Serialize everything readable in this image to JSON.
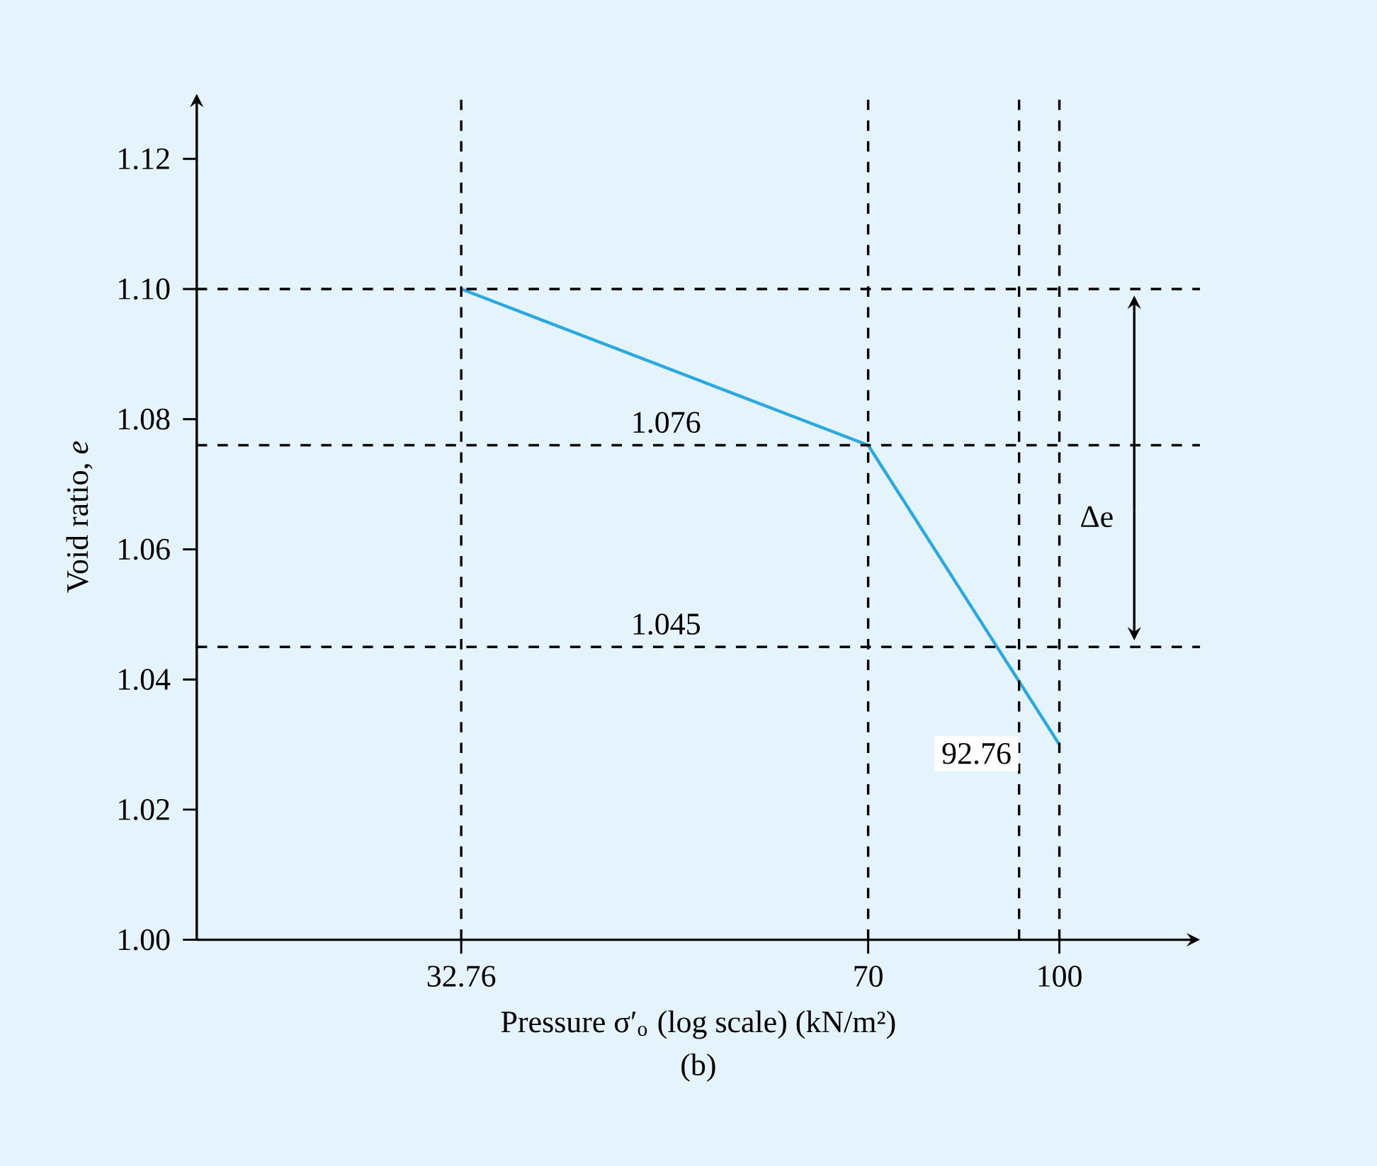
{
  "chart_data": {
    "type": "line",
    "xlabel": "Pressure σ′$_{o}$ (log scale) (kN/m²)",
    "ylabel": "Void ratio, *e*",
    "x": [
      32.76,
      70,
      100
    ],
    "series": [
      {
        "color": "#2aa8e0",
        "values": [
          1.1,
          1.076,
          1.03
        ]
      }
    ],
    "log": "x",
    "xlim": [
      20,
      130
    ],
    "ylim": [
      1.0,
      1.13
    ],
    "xticks": [
      32.76,
      70,
      100
    ],
    "yticks": [
      {
        "value": 1.0,
        "label": "1.00"
      },
      {
        "value": 1.02,
        "label": "1.02"
      },
      {
        "value": 1.04,
        "label": "1.04"
      },
      {
        "value": 1.06,
        "label": "1.06"
      },
      {
        "value": 1.08,
        "label": "1.08"
      },
      {
        "value": 1.1,
        "label": "1.10"
      },
      {
        "value": 1.12,
        "label": "1.12"
      }
    ],
    "ref_lines": [
      {
        "axis": "y",
        "value": 1.1,
        "line_style": "dashed",
        "color": "#000000"
      },
      {
        "axis": "y",
        "value": 1.076,
        "label": "1.076",
        "line_style": "dashed",
        "color": "#000000"
      },
      {
        "axis": "y",
        "value": 1.045,
        "label": "1.045",
        "line_style": "dashed",
        "color": "#000000"
      },
      {
        "axis": "x",
        "value": 32.76,
        "line_style": "dashed",
        "color": "#000000"
      },
      {
        "axis": "x",
        "value": 70,
        "line_style": "dashed",
        "color": "#000000"
      },
      {
        "axis": "x",
        "value": 92.76,
        "label": "92.76",
        "line_style": "dashed",
        "color": "#000000"
      },
      {
        "axis": "x",
        "value": 100,
        "line_style": "dashed",
        "color": "#000000"
      }
    ],
    "annotations": [
      "Δe",
      "(b)"
    ],
    "grid": false,
    "marker": "none",
    "line_style": "solid"
  }
}
